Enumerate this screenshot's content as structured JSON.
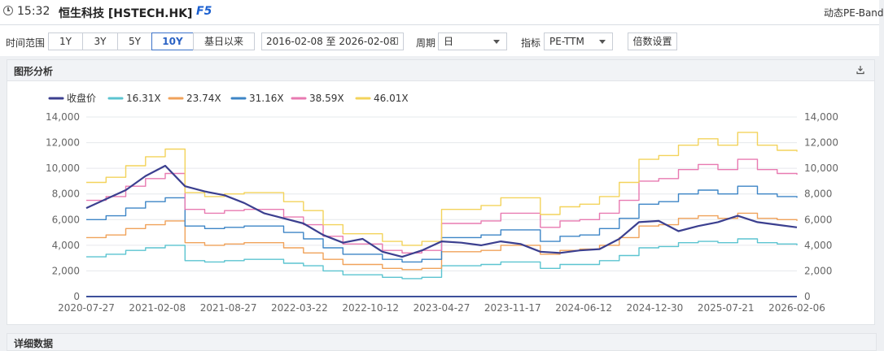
{
  "header": {
    "time": "15:32",
    "title": "恒生科技 [HSTECH.HK]",
    "f5": "F5",
    "right_label": "动态PE-Band"
  },
  "filters": {
    "range_label": "时间范围",
    "range_buttons": [
      "1Y",
      "3Y",
      "5Y",
      "10Y",
      "基日以来"
    ],
    "active_range": "10Y",
    "date_range": "2016-02-08 至 2026-02-08",
    "period_label": "周期",
    "period_value": "日",
    "indicator_label": "指标",
    "indicator_value": "PE-TTM",
    "multiplier_button": "倍数设置"
  },
  "panel": {
    "title": "图形分析",
    "download_icon": "download-icon"
  },
  "panel2": {
    "title": "详细数据"
  },
  "chart_data": {
    "type": "line",
    "x_tick_labels": [
      "2020-07-27",
      "2021-02-08",
      "2021-08-27",
      "2022-03-22",
      "2022-10-12",
      "2023-04-27",
      "2023-11-17",
      "2024-06-12",
      "2024-12-30",
      "2025-07-21",
      "2026-02-06"
    ],
    "y_ticks": [
      0,
      2000,
      4000,
      6000,
      8000,
      10000,
      12000,
      14000
    ],
    "y_tick_labels": [
      "0",
      "2,000",
      "4,000",
      "6,000",
      "8,000",
      "10,000",
      "12,000",
      "14,000"
    ],
    "ylim": [
      0,
      14000
    ],
    "grid": true,
    "legend_position": "top-left",
    "series": [
      {
        "name": "收盘价",
        "color": "#3b3f8f",
        "values": [
          6900,
          7600,
          8300,
          9400,
          10200,
          8600,
          8200,
          7900,
          7300,
          6500,
          6100,
          5700,
          4800,
          4200,
          4500,
          3500,
          3100,
          3600,
          4300,
          4200,
          4000,
          4300,
          4100,
          3500,
          3400,
          3600,
          3700,
          4500,
          5800,
          5900,
          5100,
          5500,
          5800,
          6300,
          5800,
          5600,
          5400
        ]
      },
      {
        "name": "16.31X",
        "color": "#5bc4d0",
        "values": [
          3100,
          3300,
          3600,
          3800,
          4000,
          2800,
          2700,
          2800,
          2900,
          2900,
          2600,
          2400,
          2000,
          1700,
          1700,
          1500,
          1400,
          1500,
          2400,
          2400,
          2500,
          2700,
          2700,
          2200,
          2500,
          2500,
          2800,
          3200,
          3800,
          3900,
          4200,
          4300,
          4200,
          4500,
          4200,
          4100,
          4000
        ]
      },
      {
        "name": "23.74X",
        "color": "#f0a25a",
        "values": [
          4600,
          4800,
          5300,
          5600,
          5900,
          4200,
          4000,
          4100,
          4200,
          4200,
          3800,
          3400,
          2900,
          2500,
          2500,
          2200,
          2100,
          2200,
          3500,
          3500,
          3600,
          4000,
          4000,
          3300,
          3600,
          3700,
          4000,
          4600,
          5500,
          5600,
          6100,
          6300,
          6100,
          6500,
          6100,
          6000,
          5900
        ]
      },
      {
        "name": "31.16X",
        "color": "#3d85c6",
        "values": [
          6000,
          6300,
          6900,
          7400,
          7700,
          5500,
          5300,
          5400,
          5500,
          5500,
          5000,
          4500,
          3800,
          3300,
          3300,
          2900,
          2700,
          2900,
          4600,
          4600,
          4800,
          5200,
          5200,
          4300,
          4700,
          4800,
          5300,
          6100,
          7200,
          7400,
          8000,
          8300,
          8000,
          8600,
          8000,
          7800,
          7700
        ]
      },
      {
        "name": "38.59X",
        "color": "#e87ab1",
        "values": [
          7500,
          7800,
          8600,
          9200,
          9600,
          6800,
          6500,
          6700,
          6800,
          6800,
          6200,
          5600,
          4700,
          4100,
          4100,
          3600,
          3400,
          3600,
          5700,
          5700,
          5900,
          6500,
          6500,
          5400,
          5900,
          6000,
          6500,
          7500,
          9000,
          9200,
          9900,
          10300,
          9900,
          10700,
          9900,
          9600,
          9500
        ]
      },
      {
        "name": "46.01X",
        "color": "#f3d35b",
        "values": [
          8900,
          9300,
          10200,
          10900,
          11500,
          8100,
          7800,
          8000,
          8100,
          8100,
          7400,
          6700,
          5600,
          4900,
          4900,
          4300,
          4000,
          4300,
          6800,
          6800,
          7100,
          7700,
          7700,
          6400,
          7000,
          7200,
          7800,
          8900,
          10700,
          11000,
          11800,
          12300,
          11800,
          12800,
          11800,
          11400,
          11300
        ]
      }
    ]
  }
}
